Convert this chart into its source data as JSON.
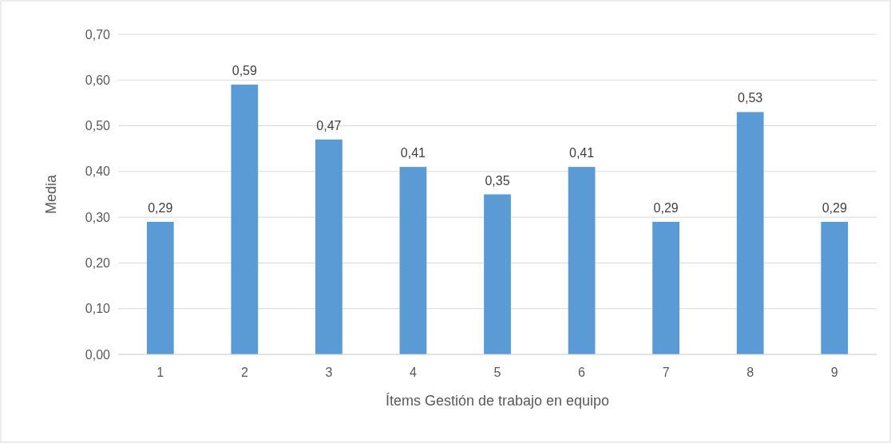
{
  "chart_data": {
    "type": "bar",
    "xlabel": "Ítems Gestión de trabajo en equipo",
    "ylabel": "Media",
    "categories": [
      "1",
      "2",
      "3",
      "4",
      "5",
      "6",
      "7",
      "8",
      "9"
    ],
    "values": [
      0.29,
      0.59,
      0.47,
      0.41,
      0.35,
      0.41,
      0.29,
      0.53,
      0.29
    ],
    "value_labels": [
      "0,29",
      "0,59",
      "0,47",
      "0,41",
      "0,35",
      "0,41",
      "0,29",
      "0,53",
      "0,29"
    ],
    "color": "#5b9bd5",
    "ylim": [
      0,
      0.7
    ],
    "yticks": [
      {
        "value": 0,
        "label": "0,00"
      },
      {
        "value": 0.1,
        "label": "0,10"
      },
      {
        "value": 0.2,
        "label": "0,20"
      },
      {
        "value": 0.3,
        "label": "0,30"
      },
      {
        "value": 0.4,
        "label": "0,40"
      },
      {
        "value": 0.5,
        "label": "0,50"
      },
      {
        "value": 0.6,
        "label": "0,60"
      },
      {
        "value": 0.7,
        "label": "0,70"
      }
    ],
    "grid": "y"
  }
}
